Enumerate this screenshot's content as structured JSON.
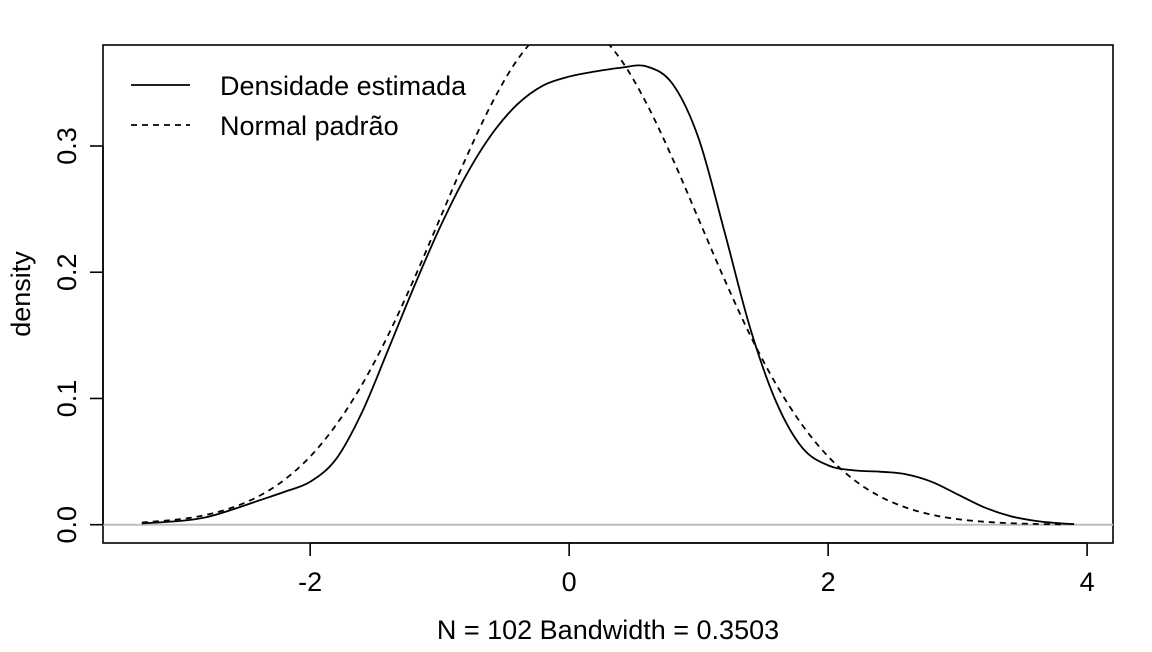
{
  "chart_data": {
    "type": "line",
    "title": "",
    "xlabel": "N = 102   Bandwidth = 0.3503",
    "ylabel": "density",
    "xlim": [
      -3.6,
      4.2
    ],
    "ylim": [
      -0.0145,
      0.38
    ],
    "x_ticks": [
      -2,
      0,
      2,
      4
    ],
    "x_tick_labels": [
      "-2",
      "0",
      "2",
      "4"
    ],
    "y_ticks": [
      0.0,
      0.1,
      0.2,
      0.3
    ],
    "y_tick_labels": [
      "0.0",
      "0.1",
      "0.2",
      "0.3"
    ],
    "grid": false,
    "legend_position": "top-left",
    "baseline_y": 0,
    "baseline_color": "#bebebe",
    "series": [
      {
        "name": "Densidade estimada",
        "style": "solid",
        "color": "#000000",
        "x": [
          -3.3,
          -3.0,
          -2.8,
          -2.6,
          -2.4,
          -2.2,
          -2.0,
          -1.8,
          -1.6,
          -1.4,
          -1.2,
          -1.0,
          -0.8,
          -0.6,
          -0.4,
          -0.2,
          0.0,
          0.2,
          0.4,
          0.6,
          0.8,
          1.0,
          1.2,
          1.4,
          1.6,
          1.8,
          2.0,
          2.2,
          2.4,
          2.6,
          2.8,
          3.0,
          3.2,
          3.4,
          3.6,
          3.8,
          3.9
        ],
        "y": [
          0.001,
          0.003,
          0.006,
          0.012,
          0.019,
          0.026,
          0.034,
          0.052,
          0.089,
          0.138,
          0.188,
          0.235,
          0.276,
          0.309,
          0.333,
          0.348,
          0.355,
          0.359,
          0.362,
          0.363,
          0.349,
          0.306,
          0.232,
          0.155,
          0.097,
          0.061,
          0.047,
          0.043,
          0.042,
          0.04,
          0.034,
          0.024,
          0.014,
          0.007,
          0.003,
          0.001,
          0.0005
        ]
      },
      {
        "name": "Normal padrão",
        "style": "dashed",
        "color": "#000000",
        "x": [
          -3.3,
          -3.0,
          -2.8,
          -2.6,
          -2.4,
          -2.2,
          -2.0,
          -1.8,
          -1.6,
          -1.4,
          -1.2,
          -1.0,
          -0.8,
          -0.6,
          -0.4,
          -0.2,
          0.0,
          0.2,
          0.4,
          0.6,
          0.8,
          1.0,
          1.2,
          1.4,
          1.6,
          1.8,
          2.0,
          2.2,
          2.4,
          2.6,
          2.8,
          3.0,
          3.2,
          3.4,
          3.6,
          3.8
        ],
        "y": [
          0.0017,
          0.0044,
          0.0079,
          0.0136,
          0.0224,
          0.0355,
          0.054,
          0.079,
          0.1109,
          0.1497,
          0.1942,
          0.242,
          0.2897,
          0.3332,
          0.3683,
          0.391,
          0.3989,
          0.391,
          0.3683,
          0.3332,
          0.2897,
          0.242,
          0.1942,
          0.1497,
          0.1109,
          0.079,
          0.054,
          0.0355,
          0.0224,
          0.0136,
          0.0079,
          0.0044,
          0.0024,
          0.0012,
          0.0006,
          0.0003
        ]
      }
    ]
  }
}
